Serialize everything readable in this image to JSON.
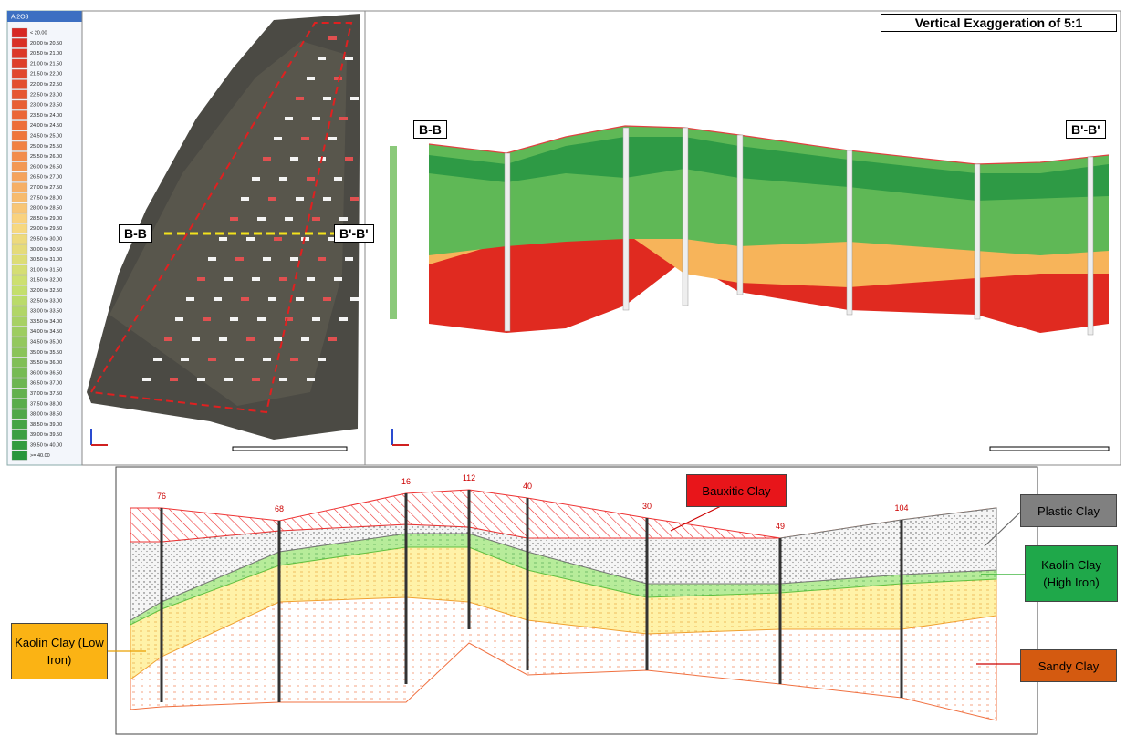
{
  "legend": {
    "title": "Al2O3",
    "entries": [
      "< 20.00",
      "20.00 to 20.50",
      "20.50 to 21.00",
      "21.00 to 21.50",
      "21.50 to 22.00",
      "22.00 to 22.50",
      "22.50 to 23.00",
      "23.00 to 23.50",
      "23.50 to 24.00",
      "24.00 to 24.50",
      "24.50 to 25.00",
      "25.00 to 25.50",
      "25.50 to 26.00",
      "26.00 to 26.50",
      "26.50 to 27.00",
      "27.00 to 27.50",
      "27.50 to 28.00",
      "28.00 to 28.50",
      "28.50 to 29.00",
      "29.00 to 29.50",
      "29.50 to 30.00",
      "30.00 to 30.50",
      "30.50 to 31.00",
      "31.00 to 31.50",
      "31.50 to 32.00",
      "32.00 to 32.50",
      "32.50 to 33.00",
      "33.00 to 33.50",
      "33.50 to 34.00",
      "34.00 to 34.50",
      "34.50 to 35.00",
      "35.00 to 35.50",
      "35.50 to 36.00",
      "36.00 to 36.50",
      "36.50 to 37.00",
      "37.00 to 37.50",
      "37.50 to 38.00",
      "38.00 to 38.50",
      "38.50 to 39.00",
      "39.00 to 39.50",
      "39.50 to 40.00",
      ">= 40.00"
    ]
  },
  "map": {
    "section_start": "B-B",
    "section_end": "B'-B'"
  },
  "section_view": {
    "note": "Vertical Exaggeration of 5:1",
    "section_start": "B-B",
    "section_end": "B'-B'"
  },
  "cross_section": {
    "drillholes": [
      "76",
      "68",
      "16",
      "112",
      "40",
      "30",
      "49",
      "104"
    ],
    "lithology": [
      "Bauxitic Clay",
      "Plastic Clay",
      "Kaolin Clay (High Iron)",
      "Kaolin Clay (Low Iron)",
      "Sandy Clay"
    ]
  }
}
